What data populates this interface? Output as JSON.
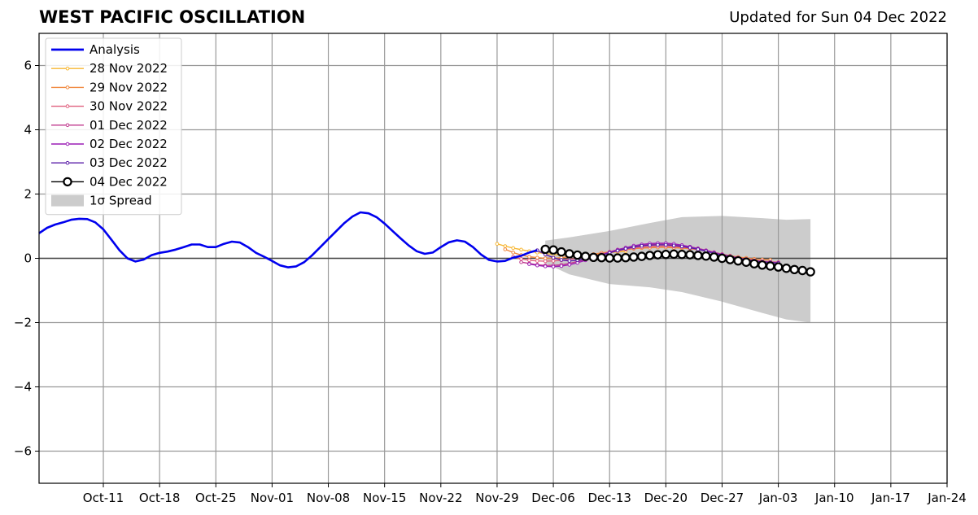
{
  "header": {
    "title": "WEST PACIFIC OSCILLATION",
    "updated": "Updated for Sun 04 Dec 2022"
  },
  "chart_data": {
    "type": "line",
    "title": "WEST PACIFIC OSCILLATION",
    "subtitle": "Updated for Sun 04 Dec 2022",
    "xlim": [
      "2022-10-03",
      "2023-01-24"
    ],
    "ylim": [
      -7,
      7
    ],
    "grid": true,
    "legend_position": "top-left",
    "x_ticks": [
      "2022-10-11",
      "2022-10-18",
      "2022-10-25",
      "2022-11-01",
      "2022-11-08",
      "2022-11-15",
      "2022-11-22",
      "2022-11-29",
      "2022-12-06",
      "2022-12-13",
      "2022-12-20",
      "2022-12-27",
      "2023-01-03",
      "2023-01-10",
      "2023-01-17",
      "2023-01-24"
    ],
    "x_tick_labels": [
      "Oct-11",
      "Oct-18",
      "Oct-25",
      "Nov-01",
      "Nov-08",
      "Nov-15",
      "Nov-22",
      "Nov-29",
      "Dec-06",
      "Dec-13",
      "Dec-20",
      "Dec-27",
      "Jan-03",
      "Jan-10",
      "Jan-17",
      "Jan-24"
    ],
    "y_ticks": [
      -6,
      -4,
      -2,
      0,
      2,
      4,
      6
    ],
    "y_tick_labels": [
      "−6",
      "−4",
      "−2",
      "0",
      "2",
      "4",
      "6"
    ],
    "spread": {
      "name": "1σ Spread",
      "color": "#cccccc",
      "x": [
        "2022-12-05",
        "2022-12-08",
        "2022-12-13",
        "2022-12-18",
        "2022-12-22",
        "2022-12-27",
        "2023-01-01",
        "2023-01-04",
        "2023-01-07"
      ],
      "upper": [
        0.55,
        0.65,
        0.85,
        1.1,
        1.28,
        1.32,
        1.25,
        1.2,
        1.22
      ],
      "lower": [
        -0.15,
        -0.5,
        -0.8,
        -0.9,
        -1.05,
        -1.35,
        -1.7,
        -1.9,
        -2.0
      ]
    },
    "series": [
      {
        "name": "Analysis",
        "color": "#0000ee",
        "style": "analysis",
        "x": [
          "2022-10-03",
          "2022-10-04",
          "2022-10-05",
          "2022-10-06",
          "2022-10-07",
          "2022-10-08",
          "2022-10-09",
          "2022-10-10",
          "2022-10-11",
          "2022-10-12",
          "2022-10-13",
          "2022-10-14",
          "2022-10-15",
          "2022-10-16",
          "2022-10-17",
          "2022-10-18",
          "2022-10-19",
          "2022-10-20",
          "2022-10-21",
          "2022-10-22",
          "2022-10-23",
          "2022-10-24",
          "2022-10-25",
          "2022-10-26",
          "2022-10-27",
          "2022-10-28",
          "2022-10-29",
          "2022-10-30",
          "2022-10-31",
          "2022-11-01",
          "2022-11-02",
          "2022-11-03",
          "2022-11-04",
          "2022-11-05",
          "2022-11-06",
          "2022-11-07",
          "2022-11-08",
          "2022-11-09",
          "2022-11-10",
          "2022-11-11",
          "2022-11-12",
          "2022-11-13",
          "2022-11-14",
          "2022-11-15",
          "2022-11-16",
          "2022-11-17",
          "2022-11-18",
          "2022-11-19",
          "2022-11-20",
          "2022-11-21",
          "2022-11-22",
          "2022-11-23",
          "2022-11-24",
          "2022-11-25",
          "2022-11-26",
          "2022-11-27",
          "2022-11-28",
          "2022-11-29",
          "2022-11-30",
          "2022-12-01",
          "2022-12-02",
          "2022-12-03",
          "2022-12-04"
        ],
        "y": [
          0.78,
          0.95,
          1.05,
          1.12,
          1.2,
          1.23,
          1.22,
          1.12,
          0.9,
          0.58,
          0.25,
          0.0,
          -0.1,
          -0.04,
          0.1,
          0.17,
          0.21,
          0.27,
          0.35,
          0.43,
          0.43,
          0.35,
          0.35,
          0.45,
          0.52,
          0.49,
          0.35,
          0.17,
          0.05,
          -0.08,
          -0.22,
          -0.28,
          -0.25,
          -0.12,
          0.1,
          0.35,
          0.6,
          0.85,
          1.1,
          1.3,
          1.43,
          1.4,
          1.28,
          1.08,
          0.85,
          0.62,
          0.4,
          0.22,
          0.14,
          0.18,
          0.35,
          0.5,
          0.56,
          0.52,
          0.35,
          0.12,
          -0.05,
          -0.1,
          -0.08,
          0.02,
          0.08,
          0.18,
          0.25
        ]
      },
      {
        "name": "28 Nov 2022",
        "color": "#f7b733",
        "style": "small-dot",
        "x": [
          "2022-11-29",
          "2022-11-30",
          "2022-12-01",
          "2022-12-02",
          "2022-12-03",
          "2022-12-04",
          "2022-12-05",
          "2022-12-06",
          "2022-12-07",
          "2022-12-08",
          "2022-12-09",
          "2022-12-10",
          "2022-12-11",
          "2022-12-12",
          "2022-12-13",
          "2022-12-14",
          "2022-12-15"
        ],
        "y": [
          0.45,
          0.38,
          0.32,
          0.27,
          0.22,
          0.18,
          0.15,
          0.12,
          0.1,
          0.09,
          0.09,
          0.1,
          0.12,
          0.15,
          0.18,
          0.2,
          0.22
        ]
      },
      {
        "name": "29 Nov 2022",
        "color": "#f0883e",
        "style": "small-dot",
        "x": [
          "2022-11-30",
          "2022-12-01",
          "2022-12-02",
          "2022-12-03",
          "2022-12-04",
          "2022-12-05",
          "2022-12-06",
          "2022-12-07",
          "2022-12-08",
          "2022-12-09",
          "2022-12-10",
          "2022-12-11",
          "2022-12-12",
          "2022-12-13",
          "2022-12-14",
          "2022-12-15",
          "2022-12-16",
          "2022-12-17",
          "2022-12-18",
          "2022-12-19",
          "2022-12-20",
          "2022-12-21",
          "2022-12-22",
          "2022-12-23",
          "2022-12-24",
          "2022-12-25",
          "2022-12-26",
          "2022-12-27",
          "2022-12-28",
          "2022-12-29",
          "2022-12-30",
          "2022-12-31",
          "2023-01-01",
          "2023-01-02"
        ],
        "y": [
          0.28,
          0.18,
          0.1,
          0.05,
          0.02,
          0.0,
          0.0,
          0.02,
          0.04,
          0.07,
          0.1,
          0.13,
          0.17,
          0.2,
          0.24,
          0.27,
          0.3,
          0.32,
          0.33,
          0.34,
          0.34,
          0.33,
          0.32,
          0.3,
          0.27,
          0.23,
          0.18,
          0.13,
          0.08,
          0.04,
          0.01,
          -0.02,
          -0.04,
          -0.05
        ]
      },
      {
        "name": "30 Nov 2022",
        "color": "#e0607e",
        "style": "small-dot",
        "x": [
          "2022-12-01",
          "2022-12-02",
          "2022-12-03",
          "2022-12-04",
          "2022-12-05",
          "2022-12-06",
          "2022-12-07",
          "2022-12-08",
          "2022-12-09",
          "2022-12-10",
          "2022-12-11",
          "2022-12-12",
          "2022-12-13",
          "2022-12-14",
          "2022-12-15",
          "2022-12-16",
          "2022-12-17",
          "2022-12-18",
          "2022-12-19",
          "2022-12-20",
          "2022-12-21",
          "2022-12-22",
          "2022-12-23",
          "2022-12-24",
          "2022-12-25",
          "2022-12-26",
          "2022-12-27",
          "2022-12-28",
          "2022-12-29",
          "2022-12-30",
          "2022-12-31",
          "2023-01-01",
          "2023-01-02",
          "2023-01-03"
        ],
        "y": [
          0.05,
          -0.02,
          -0.06,
          -0.08,
          -0.09,
          -0.08,
          -0.06,
          -0.03,
          0.0,
          0.04,
          0.08,
          0.13,
          0.18,
          0.23,
          0.28,
          0.32,
          0.35,
          0.37,
          0.38,
          0.38,
          0.37,
          0.35,
          0.32,
          0.28,
          0.23,
          0.18,
          0.12,
          0.07,
          0.02,
          -0.02,
          -0.06,
          -0.09,
          -0.11,
          -0.12
        ]
      },
      {
        "name": "01 Dec 2022",
        "color": "#c13b8f",
        "style": "small-dot",
        "x": [
          "2022-12-02",
          "2022-12-03",
          "2022-12-04",
          "2022-12-05",
          "2022-12-06",
          "2022-12-07",
          "2022-12-08",
          "2022-12-09",
          "2022-12-10",
          "2022-12-11",
          "2022-12-12",
          "2022-12-13",
          "2022-12-14",
          "2022-12-15",
          "2022-12-16",
          "2022-12-17",
          "2022-12-18",
          "2022-12-19",
          "2022-12-20",
          "2022-12-21",
          "2022-12-22",
          "2022-12-23",
          "2022-12-24",
          "2022-12-25",
          "2022-12-26",
          "2022-12-27",
          "2022-12-28",
          "2022-12-29",
          "2022-12-30",
          "2022-12-31",
          "2023-01-01",
          "2023-01-02",
          "2023-01-03"
        ],
        "y": [
          -0.12,
          -0.16,
          -0.2,
          -0.22,
          -0.22,
          -0.2,
          -0.16,
          -0.1,
          -0.03,
          0.05,
          0.12,
          0.2,
          0.27,
          0.33,
          0.38,
          0.42,
          0.44,
          0.45,
          0.45,
          0.43,
          0.4,
          0.36,
          0.31,
          0.25,
          0.19,
          0.13,
          0.07,
          0.02,
          -0.03,
          -0.07,
          -0.1,
          -0.12,
          -0.14
        ]
      },
      {
        "name": "02 Dec 2022",
        "color": "#9b1fb5",
        "style": "small-dot",
        "x": [
          "2022-12-03",
          "2022-12-04",
          "2022-12-05",
          "2022-12-06",
          "2022-12-07",
          "2022-12-08",
          "2022-12-09",
          "2022-12-10",
          "2022-12-11",
          "2022-12-12",
          "2022-12-13",
          "2022-12-14",
          "2022-12-15",
          "2022-12-16",
          "2022-12-17",
          "2022-12-18",
          "2022-12-19",
          "2022-12-20",
          "2022-12-21",
          "2022-12-22",
          "2022-12-23",
          "2022-12-24",
          "2022-12-25",
          "2022-12-26",
          "2022-12-27",
          "2022-12-28",
          "2022-12-29",
          "2022-12-30",
          "2022-12-31",
          "2023-01-01",
          "2023-01-02",
          "2023-01-03"
        ],
        "y": [
          -0.18,
          -0.22,
          -0.25,
          -0.26,
          -0.24,
          -0.2,
          -0.14,
          -0.06,
          0.02,
          0.1,
          0.18,
          0.26,
          0.33,
          0.39,
          0.43,
          0.46,
          0.47,
          0.47,
          0.45,
          0.41,
          0.36,
          0.3,
          0.24,
          0.17,
          0.11,
          0.05,
          0.0,
          -0.04,
          -0.08,
          -0.11,
          -0.13,
          -0.15
        ]
      },
      {
        "name": "03 Dec 2022",
        "color": "#5a1da8",
        "style": "small-dot",
        "x": [
          "2022-12-04",
          "2022-12-05",
          "2022-12-06",
          "2022-12-07",
          "2022-12-08",
          "2022-12-09",
          "2022-12-10",
          "2022-12-11",
          "2022-12-12",
          "2022-12-13",
          "2022-12-14",
          "2022-12-15",
          "2022-12-16",
          "2022-12-17",
          "2022-12-18",
          "2022-12-19",
          "2022-12-20",
          "2022-12-21",
          "2022-12-22",
          "2022-12-23",
          "2022-12-24",
          "2022-12-25",
          "2022-12-26",
          "2022-12-27",
          "2022-12-28",
          "2022-12-29",
          "2022-12-30",
          "2022-12-31",
          "2023-01-01",
          "2023-01-02",
          "2023-01-03"
        ],
        "y": [
          0.25,
          0.12,
          0.02,
          -0.05,
          -0.08,
          -0.06,
          -0.02,
          0.04,
          0.1,
          0.17,
          0.24,
          0.3,
          0.35,
          0.39,
          0.41,
          0.42,
          0.42,
          0.4,
          0.37,
          0.33,
          0.28,
          0.22,
          0.16,
          0.1,
          0.05,
          0.0,
          -0.04,
          -0.08,
          -0.11,
          -0.13,
          -0.15
        ]
      },
      {
        "name": "04 Dec 2022",
        "color": "#000000",
        "style": "big-circle",
        "x": [
          "2022-12-05",
          "2022-12-06",
          "2022-12-07",
          "2022-12-08",
          "2022-12-09",
          "2022-12-10",
          "2022-12-11",
          "2022-12-12",
          "2022-12-13",
          "2022-12-14",
          "2022-12-15",
          "2022-12-16",
          "2022-12-17",
          "2022-12-18",
          "2022-12-19",
          "2022-12-20",
          "2022-12-21",
          "2022-12-22",
          "2022-12-23",
          "2022-12-24",
          "2022-12-25",
          "2022-12-26",
          "2022-12-27",
          "2022-12-28",
          "2022-12-29",
          "2022-12-30",
          "2022-12-31",
          "2023-01-01",
          "2023-01-02",
          "2023-01-03",
          "2023-01-04",
          "2023-01-05",
          "2023-01-06",
          "2023-01-07"
        ],
        "y": [
          0.28,
          0.26,
          0.2,
          0.14,
          0.1,
          0.06,
          0.03,
          0.02,
          0.01,
          0.01,
          0.02,
          0.04,
          0.06,
          0.09,
          0.11,
          0.12,
          0.13,
          0.12,
          0.11,
          0.09,
          0.07,
          0.04,
          0.0,
          -0.04,
          -0.08,
          -0.12,
          -0.17,
          -0.21,
          -0.24,
          -0.27,
          -0.31,
          -0.35,
          -0.38,
          -0.42
        ]
      }
    ],
    "legend": [
      {
        "label": "Analysis",
        "color": "#0000ee",
        "style": "analysis"
      },
      {
        "label": "28 Nov 2022",
        "color": "#f7b733",
        "style": "small-dot"
      },
      {
        "label": "29 Nov 2022",
        "color": "#f0883e",
        "style": "small-dot"
      },
      {
        "label": "30 Nov 2022",
        "color": "#e0607e",
        "style": "small-dot"
      },
      {
        "label": "01 Dec 2022",
        "color": "#c13b8f",
        "style": "small-dot"
      },
      {
        "label": "02 Dec 2022",
        "color": "#9b1fb5",
        "style": "small-dot"
      },
      {
        "label": "03 Dec 2022",
        "color": "#5a1da8",
        "style": "small-dot"
      },
      {
        "label": "04 Dec 2022",
        "color": "#000000",
        "style": "big-circle"
      },
      {
        "label": "1σ Spread",
        "color": "#cccccc",
        "style": "patch"
      }
    ]
  }
}
